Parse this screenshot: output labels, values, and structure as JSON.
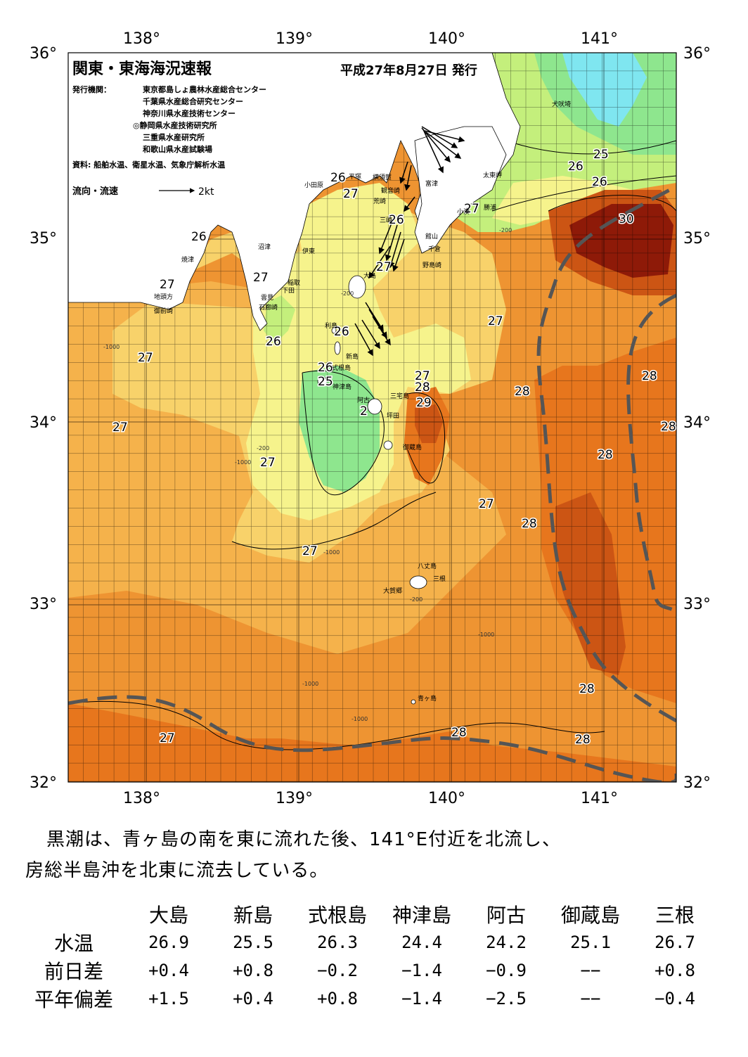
{
  "header": {
    "title": "関東・東海海況速報",
    "date": "平成27年8月27日 発行",
    "publisher_label": "発行機関：",
    "publishers": [
      "東京都島しょ農林水産総合センター",
      "千葉県水産総合研究センター",
      "神奈川県水産技術センター",
      "◎静岡県水産技術研究所",
      "三重県水産研究所",
      "和歌山県水産試験場"
    ],
    "sources": "資料: 船舶水温、衛星水温、気象庁解析水温",
    "legend_label": "流向・流速",
    "legend_scale": "2kt"
  },
  "axes": {
    "lon_labels": [
      "138°",
      "139°",
      "140°",
      "141°"
    ],
    "lat_labels": [
      "36°",
      "35°",
      "34°",
      "33°",
      "32°"
    ]
  },
  "colors": {
    "t25": "#8ee68e",
    "t26": "#c4ef7c",
    "t26_5": "#f6f38c",
    "t27": "#f8d26a",
    "t27_5": "#f5b24b",
    "t28": "#ee9432",
    "t28_5": "#e7761d",
    "t29": "#cc5514",
    "t30": "#8e1a08",
    "cold": "#7fe6f0",
    "land": "#ffffff",
    "kuroshio_axis": "#555555"
  },
  "isotherm_labels": [
    "26",
    "27",
    "26",
    "25",
    "26",
    "30",
    "27",
    "26",
    "27",
    "27",
    "27",
    "26",
    "27",
    "26",
    "27",
    "26",
    "25",
    "27",
    "28",
    "29",
    "28",
    "28",
    "28",
    "27",
    "28",
    "27",
    "27",
    "28",
    "28",
    "28",
    "28",
    "27",
    "27",
    "26",
    "2"
  ],
  "places": [
    "犬吠埼",
    "太東岬",
    "勝浦",
    "小湊",
    "富津",
    "館山",
    "千倉",
    "野島崎",
    "横須賀",
    "観音崎",
    "荒崎",
    "三崎",
    "平塚",
    "小田原",
    "沼津",
    "伊東",
    "稲取",
    "下田",
    "雲見",
    "石廊崎",
    "焼津",
    "地頭方",
    "御前崎",
    "大島",
    "利島",
    "新島",
    "式根島",
    "神津島",
    "三宅島",
    "阿古",
    "坪田",
    "御蔵島",
    "八丈島",
    "三根",
    "大賀郷",
    "青ヶ島"
  ],
  "depth_labels": [
    "-1000",
    "-200"
  ],
  "summary": {
    "line1": "黒潮は、青ヶ島の南を東に流れた後、141°E付近を北流し、",
    "line2": "房総半島沖を北東に流去している。"
  },
  "table": {
    "columns": [
      "大島",
      "新島",
      "式根島",
      "神津島",
      "阿古",
      "御蔵島",
      "三根"
    ],
    "rows": [
      {
        "label": "水温",
        "values": [
          "26.9",
          "25.5",
          "26.3",
          "24.4",
          "24.2",
          "25.1",
          "26.7"
        ]
      },
      {
        "label": "前日差",
        "values": [
          "+0.4",
          "+0.8",
          "−0.2",
          "−1.4",
          "−0.9",
          "−−",
          "+0.8"
        ]
      },
      {
        "label": "平年偏差",
        "values": [
          "+1.5",
          "+0.4",
          "+0.8",
          "−1.4",
          "−2.5",
          "−−",
          "−0.4"
        ]
      }
    ]
  }
}
